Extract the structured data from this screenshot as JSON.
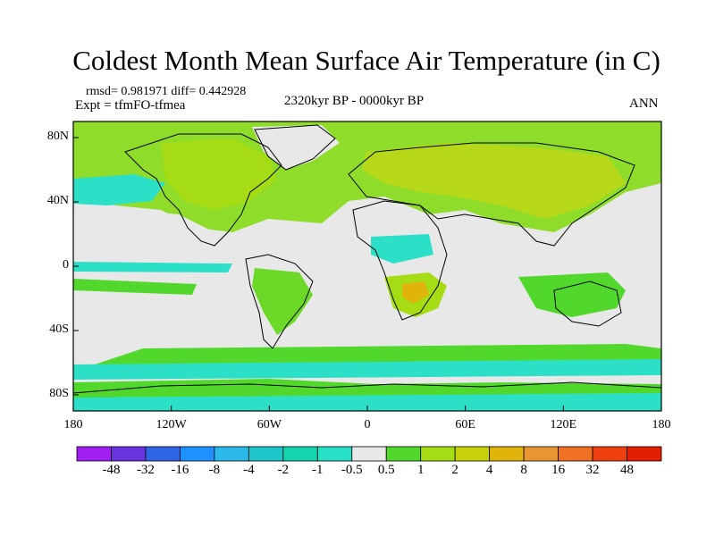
{
  "chart_data": {
    "type": "heatmap",
    "title": "Coldest Month Mean Surface Air Temperature (in C)",
    "stats": "rmsd= 0.981971  diff= 0.442928",
    "experiment": "Expt = tfmFO-tfmea",
    "period": "2320kyr BP - 0000kyr BP",
    "season": "ANN",
    "xticks": [
      "180",
      "120W",
      "60W",
      "0",
      "60E",
      "120E",
      "180"
    ],
    "xtick_values": [
      -180,
      -120,
      -60,
      0,
      60,
      120,
      180
    ],
    "yticks": [
      "80N",
      "40N",
      "0",
      "40S",
      "80S"
    ],
    "ytick_values": [
      80,
      40,
      0,
      -40,
      -80
    ],
    "xlim": [
      -180,
      180
    ],
    "ylim": [
      -90,
      90
    ],
    "colorbar": {
      "labels": [
        "-48",
        "-32",
        "-16",
        "-8",
        "-4",
        "-2",
        "-1",
        "-0.5",
        "0.5",
        "1",
        "2",
        "4",
        "8",
        "16",
        "32",
        "48"
      ],
      "colors": [
        "#a020f0",
        "#6a33e0",
        "#2e64e6",
        "#1e90ff",
        "#2ab9e8",
        "#1cc6c9",
        "#13d6b0",
        "#26e0c8",
        "#e8e8e8",
        "#52d82c",
        "#a6dc14",
        "#c8d20a",
        "#e0b40a",
        "#e89632",
        "#f07024",
        "#f04010",
        "#e02000"
      ]
    },
    "regions": [
      {
        "lon": [
          -180,
          180
        ],
        "lat": [
          50,
          85
        ],
        "bin": "1 to 2"
      },
      {
        "lon": [
          -5,
          150
        ],
        "lat": [
          25,
          75
        ],
        "bin": "2 to 4"
      },
      {
        "lon": [
          -140,
          -60
        ],
        "lat": [
          30,
          70
        ],
        "bin": "1 to 4"
      },
      {
        "lon": [
          -170,
          -130
        ],
        "lat": [
          15,
          45
        ],
        "bin": "-1 to -0.5"
      },
      {
        "lon": [
          -50,
          -15
        ],
        "lat": [
          60,
          85
        ],
        "bin": "-0.5 to 0.5"
      },
      {
        "lon": [
          -75,
          -40
        ],
        "lat": [
          -40,
          -5
        ],
        "bin": "1 to 2"
      },
      {
        "lon": [
          15,
          45
        ],
        "lat": [
          -30,
          -5
        ],
        "bin": "2 to 8"
      },
      {
        "lon": [
          115,
          150
        ],
        "lat": [
          -40,
          -10
        ],
        "bin": "1 to 2"
      },
      {
        "lon": [
          -180,
          180
        ],
        "lat": [
          -75,
          -55
        ],
        "bin": "-1 to -0.5"
      },
      {
        "lon": [
          -180,
          180
        ],
        "lat": [
          -90,
          -80
        ],
        "bin": "-1 to -0.5"
      }
    ]
  }
}
